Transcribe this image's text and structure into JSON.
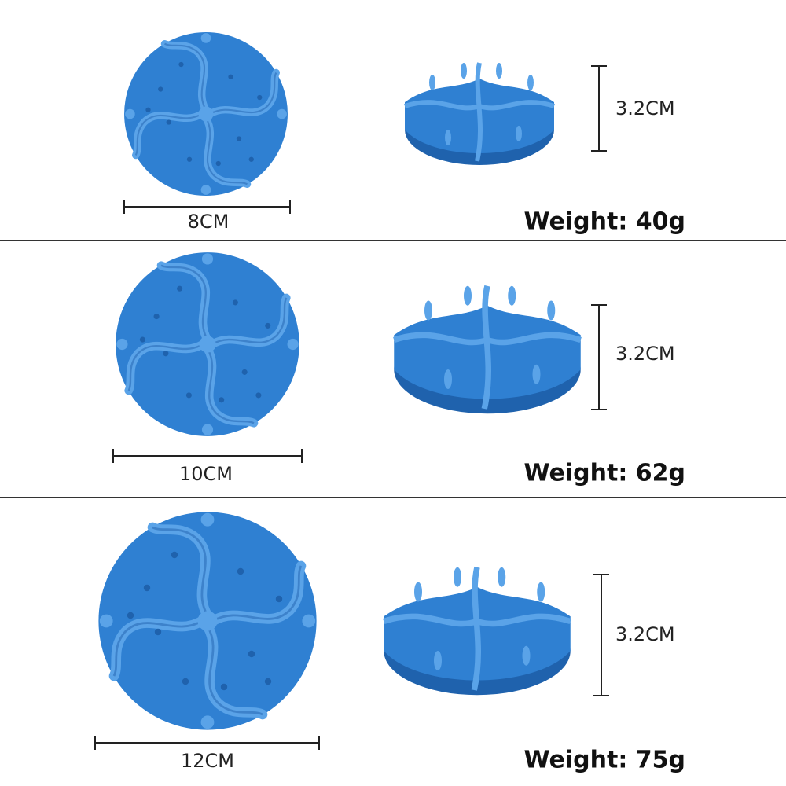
{
  "colors": {
    "product": "#2f80d2",
    "product_highlight": "#5aa3e8",
    "product_shadow": "#1f62ad"
  },
  "rows": [
    {
      "diameter": "8CM",
      "height": "3.2CM",
      "weight": "Weight: 40g"
    },
    {
      "diameter": "10CM",
      "height": "3.2CM",
      "weight": "Weight: 62g"
    },
    {
      "diameter": "12CM",
      "height": "3.2CM",
      "weight": "Weight: 75g"
    }
  ]
}
